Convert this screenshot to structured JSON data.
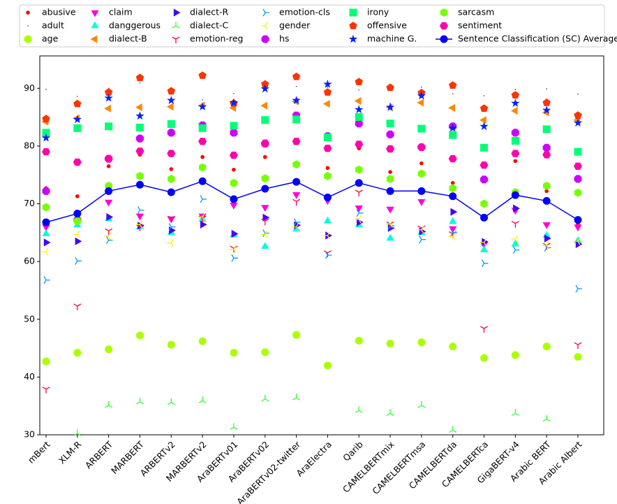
{
  "chart_data": {
    "type": "scatter",
    "categories": [
      "mBert",
      "XLM-R",
      "ARBERT",
      "MARBERT",
      "ARBERTv2",
      "MARBERTv2",
      "AraBERTv01",
      "AraBERTv02",
      "AraBERTv02-twitter",
      "AraElectra",
      "Qarib",
      "CAMELBERTmix",
      "CAMELBERTmsa",
      "CAMELBERTda",
      "CAMELBERTca",
      "GigaBERT-v4",
      "Arabic BERT",
      "Arabic Albert"
    ],
    "ylim": [
      30,
      95.6
    ],
    "yticks": [
      30,
      40,
      50,
      60,
      70,
      80,
      90
    ],
    "legend": "top",
    "series": [
      {
        "name": "abusive",
        "color": "#ff0000",
        "marker": "dot",
        "values": [
          72.7,
          71.3,
          76.5,
          78.5,
          76.0,
          78.1,
          75.9,
          78.1,
          76.5,
          76.2,
          79.6,
          75.5,
          77.0,
          73.6,
          63.5,
          77.4,
          72.2,
          66.5
        ]
      },
      {
        "name": "adult",
        "color": "#000000",
        "marker": "pixel",
        "values": [
          89.8,
          88.6,
          90.0,
          90.9,
          89.5,
          88.0,
          89.1,
          90.0,
          90.3,
          90.2,
          89.7,
          87.4,
          90.2,
          89.0,
          88.7,
          89.8,
          89.9,
          89.0
        ]
      },
      {
        "name": "age",
        "color": "#aaff00",
        "marker": "circle",
        "values": [
          42.7,
          44.2,
          44.8,
          47.2,
          45.6,
          46.2,
          44.2,
          44.3,
          47.3,
          42.0,
          46.3,
          45.8,
          46.0,
          45.3,
          43.3,
          43.8,
          45.3,
          43.5
        ]
      },
      {
        "name": "claim",
        "color": "#ff00dd",
        "marker": "tri-down-filled",
        "values": [
          66.0,
          66.8,
          70.3,
          67.9,
          67.4,
          67.9,
          69.8,
          69.4,
          71.6,
          70.6,
          69.3,
          69.1,
          70.4,
          65.7,
          63.0,
          68.9,
          66.4,
          66.0
        ]
      },
      {
        "name": "danggerous",
        "color": "#00ffdd",
        "marker": "tri-up-filled",
        "values": [
          64.8,
          66.3,
          67.4,
          66.0,
          65.0,
          67.3,
          64.6,
          62.6,
          65.6,
          67.0,
          66.3,
          64.0,
          65.0,
          66.9,
          62.0,
          63.0,
          64.5,
          63.6
        ]
      },
      {
        "name": "dialect-B",
        "color": "#ff8800",
        "marker": "tri-left-filled",
        "values": [
          84.2,
          84.8,
          86.5,
          86.7,
          86.8,
          87.0,
          86.6,
          87.0,
          87.7,
          87.3,
          87.8,
          86.7,
          87.5,
          86.6,
          84.5,
          86.1,
          85.8,
          84.5
        ]
      },
      {
        "name": "dialect-R",
        "color": "#4400ff",
        "marker": "tri-right-filled",
        "values": [
          63.3,
          63.5,
          67.7,
          66.2,
          65.4,
          66.4,
          64.8,
          67.6,
          66.3,
          64.5,
          66.8,
          65.8,
          65.2,
          68.6,
          63.4,
          69.2,
          64.0,
          63.0
        ]
      },
      {
        "name": "dialect-C",
        "color": "#33ff33",
        "marker": "y-down",
        "values": [
          null,
          30.2,
          35.1,
          35.7,
          35.6,
          35.9,
          31.3,
          36.2,
          36.4,
          null,
          34.2,
          33.7,
          35.1,
          30.8,
          null,
          33.7,
          32.7,
          null
        ]
      },
      {
        "name": "emotion-reg",
        "color": "#ff0044",
        "marker": "y-up",
        "values": [
          37.9,
          52.3,
          65.3,
          66.0,
          67.5,
          67.5,
          62.3,
          67.0,
          70.4,
          61.5,
          72.0,
          66.5,
          65.8,
          64.8,
          48.4,
          66.6,
          62.8,
          45.6
        ]
      },
      {
        "name": "emotion-cls",
        "color": "#0099ff",
        "marker": "y-left",
        "values": [
          56.8,
          60.1,
          63.7,
          68.9,
          66.0,
          70.8,
          60.6,
          64.9,
          66.8,
          61.1,
          68.4,
          66.2,
          63.8,
          65.0,
          59.7,
          62.0,
          62.4,
          55.3
        ]
      },
      {
        "name": "gender",
        "color": "#ffee00",
        "marker": "y-right",
        "values": [
          61.7,
          64.7,
          64.4,
          66.4,
          63.2,
          67.7,
          62.1,
          64.7,
          66.0,
          64.5,
          67.3,
          66.5,
          65.5,
          64.3,
          63.3,
          63.9,
          62.8,
          63.5
        ]
      },
      {
        "name": "hs",
        "color": "#cc00ff",
        "marker": "octagon",
        "values": [
          72.2,
          67.2,
          77.8,
          81.3,
          82.3,
          83.6,
          82.3,
          80.4,
          85.3,
          81.7,
          83.9,
          82.0,
          79.8,
          83.4,
          74.2,
          82.3,
          79.7,
          74.3
        ]
      },
      {
        "name": "irony",
        "color": "#00ff77",
        "marker": "square",
        "values": [
          82.3,
          83.1,
          83.4,
          83.2,
          83.8,
          83.1,
          83.5,
          84.5,
          84.6,
          81.5,
          85.0,
          83.9,
          83.0,
          81.9,
          79.7,
          80.9,
          82.9,
          79.0
        ]
      },
      {
        "name": "offensive",
        "color": "#ff3300",
        "marker": "pentagon",
        "values": [
          84.7,
          87.3,
          89.3,
          91.8,
          89.5,
          92.2,
          87.4,
          90.7,
          92.0,
          89.3,
          91.1,
          90.1,
          89.2,
          90.5,
          86.5,
          88.8,
          87.5,
          85.3
        ]
      },
      {
        "name": "machine G.",
        "color": "#0022ff",
        "marker": "star",
        "values": [
          81.4,
          84.6,
          88.3,
          85.2,
          87.9,
          86.8,
          87.5,
          89.9,
          87.9,
          90.7,
          86.3,
          86.7,
          88.7,
          83.1,
          83.4,
          87.4,
          86.2,
          84.0
        ]
      },
      {
        "name": "sarcasm",
        "color": "#77ff00",
        "marker": "hexagon",
        "values": [
          69.4,
          67.0,
          73.1,
          74.8,
          74.3,
          76.3,
          73.6,
          74.4,
          76.8,
          74.8,
          75.9,
          74.3,
          75.2,
          72.7,
          70.0,
          72.0,
          73.1,
          71.9
        ]
      },
      {
        "name": "sentiment",
        "color": "#ff00aa",
        "marker": "hexagon2",
        "values": [
          79.0,
          77.2,
          77.8,
          79.1,
          78.7,
          80.8,
          78.4,
          80.5,
          80.8,
          79.6,
          80.3,
          79.5,
          79.8,
          77.8,
          76.7,
          78.7,
          78.5,
          76.5
        ]
      },
      {
        "name": "Sentence Classification (SC) Average",
        "color": "#0000ff",
        "marker": "line-circle",
        "values": [
          66.8,
          68.3,
          72.2,
          73.3,
          72.0,
          73.9,
          70.8,
          72.6,
          73.8,
          71.1,
          73.6,
          72.2,
          72.2,
          71.3,
          67.6,
          71.5,
          70.5,
          67.2
        ]
      }
    ]
  }
}
